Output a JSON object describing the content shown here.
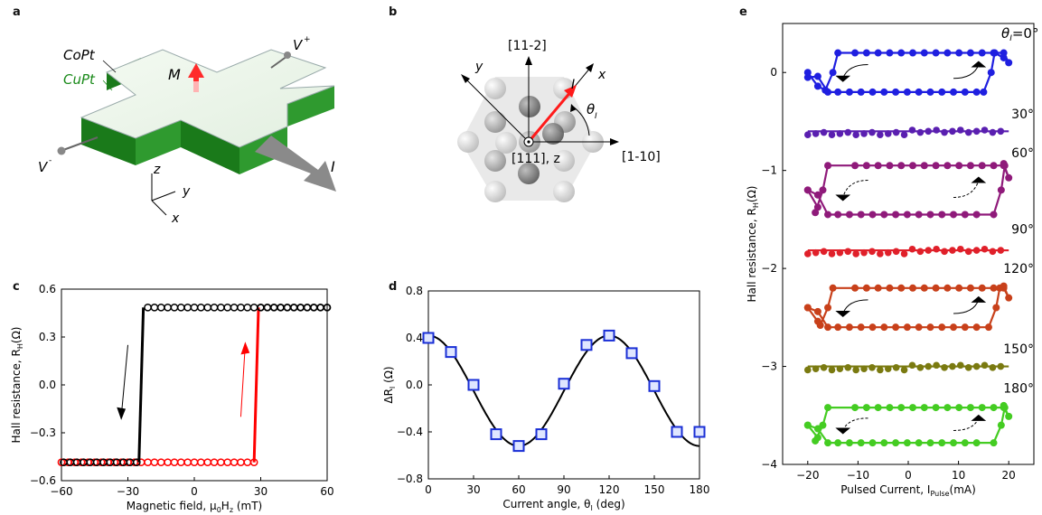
{
  "panels": {
    "a": {
      "letter": "a",
      "labels": {
        "copt": "CoPt",
        "cupt": "CuPt",
        "m": "M",
        "vplus": "V",
        "vplus_sup": "+",
        "vminus": "V",
        "vminus_sup": "-",
        "i": "I",
        "z": "z",
        "y": "y",
        "x": "x"
      }
    },
    "b": {
      "letter": "b",
      "labels": {
        "dir_112": "[11-2]",
        "dir_110": "[1-10]",
        "dir_111": "[111], z",
        "x": "x",
        "y": "y",
        "i": "I",
        "theta": "θ",
        "theta_sub": "I"
      }
    },
    "c": {
      "letter": "c"
    },
    "d": {
      "letter": "d"
    },
    "e": {
      "letter": "e",
      "theta_label": "θ",
      "theta_sub": "I",
      "theta_eq": "=0°",
      "offset_labels": [
        "30°",
        "60°",
        "90°",
        "120°",
        "150°",
        "180°"
      ]
    }
  },
  "chart_data": [
    {
      "id": "c",
      "type": "line",
      "xlabel": "Magnetic field, μ0Hz (mT)",
      "xlabel_parts": {
        "pre": "Magnetic field, μ",
        "sub1": "0",
        "mid": "H",
        "sub2": "z",
        "post": " (mT)"
      },
      "ylabel": "Hall resistance, RH(Ω)",
      "ylabel_parts": {
        "pre": "Hall resistance, R",
        "sub": "H",
        "post": "(Ω)"
      },
      "xlim": [
        -60,
        60
      ],
      "ylim": [
        -0.6,
        0.6
      ],
      "xticks": [
        -60,
        -30,
        0,
        30,
        60
      ],
      "yticks": [
        -0.6,
        -0.3,
        0.0,
        0.3,
        0.6
      ],
      "xtick_labels": [
        "−60",
        "−30",
        "0",
        "30",
        "60"
      ],
      "ytick_labels": [
        "−0.6",
        "−0.3",
        "0.0",
        "0.3",
        "0.6"
      ],
      "series": [
        {
          "color": "#000000",
          "switch_x": -23,
          "x_from": 60,
          "x_to": -60,
          "high": 0.485,
          "low": -0.485,
          "direction": "down"
        },
        {
          "color": "#ff0000",
          "switch_x": 27,
          "x_from": -60,
          "x_to": 60,
          "high": 0.485,
          "low": -0.485,
          "direction": "up"
        }
      ]
    },
    {
      "id": "d",
      "type": "scatter",
      "xlabel": "Current angle, θI (deg)",
      "xlabel_parts": {
        "pre": "Current angle, θ",
        "sub": "I",
        "post": " (deg)"
      },
      "ylabel": "ΔRI (Ω)",
      "ylabel_parts": {
        "pre": "ΔR",
        "sub": "I",
        "post": " (Ω)"
      },
      "xlim": [
        0,
        180
      ],
      "ylim": [
        -0.8,
        0.8
      ],
      "xticks": [
        0,
        30,
        60,
        90,
        120,
        150,
        180
      ],
      "yticks": [
        -0.8,
        -0.4,
        0.0,
        0.4,
        0.8
      ],
      "xtick_labels": [
        "0",
        "30",
        "60",
        "90",
        "120",
        "150",
        "180"
      ],
      "ytick_labels": [
        "−0.8",
        "−0.4",
        "0.0",
        "0.4",
        "0.8"
      ],
      "x": [
        0,
        15,
        30,
        45,
        60,
        75,
        90,
        105,
        120,
        135,
        150,
        165,
        180
      ],
      "y": [
        0.4,
        0.28,
        0.0,
        -0.42,
        -0.52,
        -0.42,
        0.01,
        0.34,
        0.42,
        0.27,
        -0.01,
        -0.4,
        -0.4
      ],
      "fit": {
        "amplitude": 0.47,
        "period": 120,
        "phase_deg": 0,
        "offset": -0.05
      }
    },
    {
      "id": "e",
      "type": "line",
      "xlabel": "Pulsed Current, IPulse(mA)",
      "xlabel_parts": {
        "pre": "Pulsed Current, I",
        "sub": "Pulse",
        "post": "(mA)"
      },
      "ylabel": "Hall resistance, RH(Ω)",
      "ylabel_parts": {
        "pre": "Hall resistance, R",
        "sub": "H",
        "post": "(Ω)"
      },
      "xlim": [
        -25,
        25
      ],
      "ylim": [
        -4,
        0.5
      ],
      "xticks": [
        -20,
        -10,
        0,
        10,
        20
      ],
      "yticks": [
        -4,
        -3,
        -2,
        -1,
        0
      ],
      "xtick_labels": [
        "−20",
        "−10",
        "0",
        "10",
        "20"
      ],
      "ytick_labels": [
        "−4",
        "−3",
        "−2",
        "−1",
        "0"
      ],
      "series": [
        {
          "angle": 0,
          "color": "#1f1fe0",
          "top": 0.2,
          "bottom": -0.2,
          "ic": 15,
          "loop": true
        },
        {
          "angle": 30,
          "color": "#5a1fb0",
          "top": -0.58,
          "bottom": -0.62,
          "ic": 17,
          "loop": false
        },
        {
          "angle": 60,
          "color": "#8f1a7a",
          "top": -0.95,
          "bottom": -1.45,
          "ic": 17,
          "loop": true
        },
        {
          "angle": 90,
          "color": "#e0202a",
          "top": -1.8,
          "bottom": -1.83,
          "ic": 17,
          "loop": false
        },
        {
          "angle": 120,
          "color": "#c8401a",
          "top": -2.2,
          "bottom": -2.6,
          "ic": 16,
          "loop": true
        },
        {
          "angle": 150,
          "color": "#7a7a10",
          "top": -2.98,
          "bottom": -3.02,
          "ic": 17,
          "loop": false
        },
        {
          "angle": 180,
          "color": "#44cc22",
          "top": -3.42,
          "bottom": -3.78,
          "ic": 17,
          "loop": true
        }
      ]
    }
  ]
}
